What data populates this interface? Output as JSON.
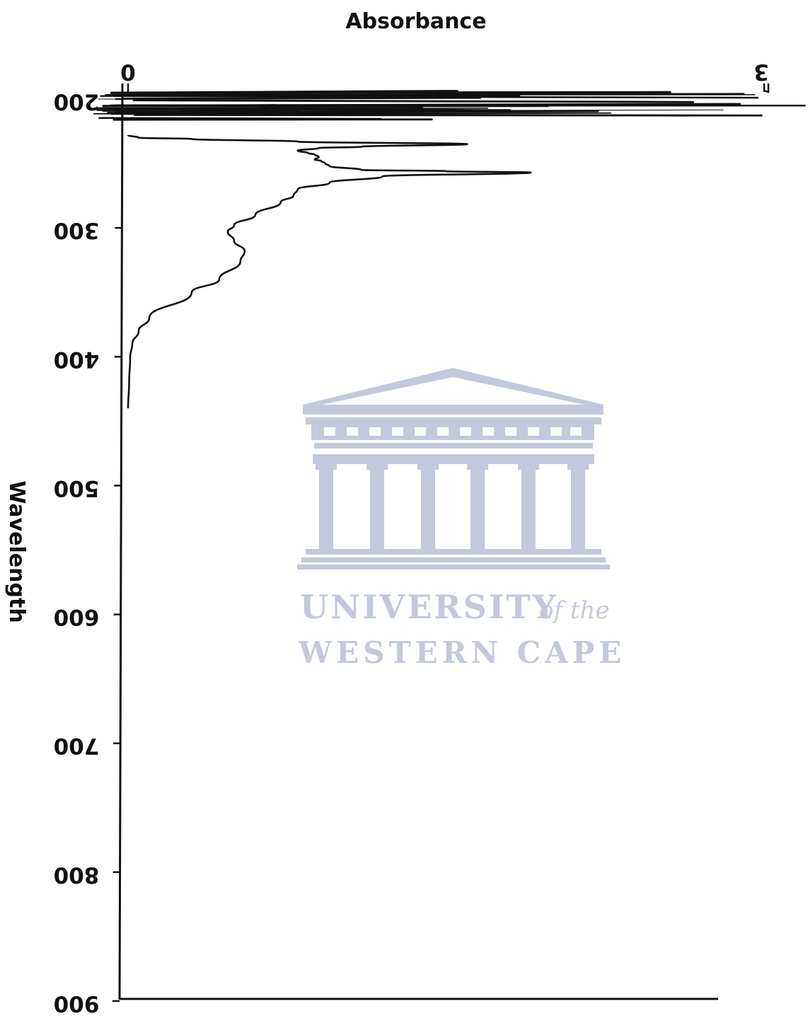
{
  "chart_data": {
    "type": "line",
    "orientation": "vertical",
    "title": "Absorbance",
    "xlabel": "Absorbance",
    "ylabel": "Wavelength",
    "x_axis_position": "top",
    "xlim": [
      0,
      3
    ],
    "ylim": [
      200,
      900
    ],
    "x_ticks": [
      0,
      3
    ],
    "x_tick_labels": [
      "0",
      "3"
    ],
    "y_ticks": [
      200,
      300,
      400,
      500,
      600,
      700,
      800,
      900
    ],
    "y_tick_labels": [
      "200",
      "300",
      "400",
      "500",
      "600",
      "700",
      "800",
      "900"
    ],
    "tick_labels_rotated_180": true,
    "grid": false,
    "legend": "none",
    "line_color": "#111111",
    "series": [
      {
        "x": [
          0.0,
          0.05,
          0.3,
          0.8,
          1.6,
          1.1,
          0.9,
          0.8,
          0.85,
          0.88,
          0.9,
          0.88,
          0.91,
          0.93,
          0.95,
          1.1,
          1.5,
          1.9,
          1.2,
          0.95,
          0.8,
          0.78,
          0.72,
          0.6,
          0.5,
          0.47,
          0.5,
          0.55,
          0.53,
          0.43,
          0.3,
          0.1,
          0.05,
          0.02,
          0.01,
          0.005,
          0.0
        ],
        "y": [
          228,
          230,
          231,
          233,
          235,
          237,
          238,
          240,
          242,
          243,
          245,
          247,
          248,
          250,
          252,
          255,
          256,
          257,
          260,
          265,
          270,
          275,
          280,
          290,
          298,
          303,
          310,
          318,
          326,
          340,
          350,
          370,
          380,
          390,
          400,
          420,
          440
        ]
      }
    ],
    "annotations": [
      "Off-scale noisy absorbance spikes exceeding 3 between 200 and 215 nm"
    ]
  },
  "watermark": {
    "line1": "UNIVERSITY",
    "line1_suffix": "of the",
    "line2": "WESTERN CAPE",
    "color": "#c3c8dc"
  }
}
